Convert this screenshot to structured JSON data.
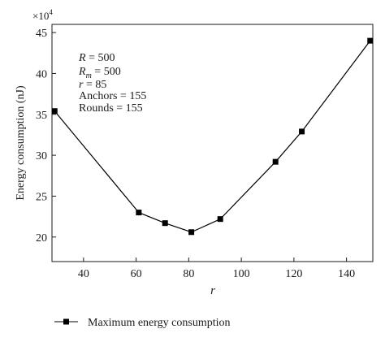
{
  "chart_data": {
    "type": "line",
    "title": "",
    "xlabel": "r",
    "ylabel": "Energy consumption (nJ)",
    "y_multiplier": "×10",
    "y_multiplier_exp": "4",
    "xlim": [
      28,
      150
    ],
    "ylim": [
      17,
      46
    ],
    "x_ticks": [
      40,
      60,
      80,
      100,
      120,
      140
    ],
    "y_ticks": [
      20,
      25,
      30,
      35,
      40,
      45
    ],
    "grid": false,
    "legend_position": "bottom-left",
    "series": [
      {
        "name": "Maximum energy consumption",
        "color": "#000000",
        "marker": "square",
        "x": [
          29,
          61,
          71,
          81,
          92,
          113,
          123,
          149
        ],
        "y": [
          35.4,
          23.0,
          21.7,
          20.6,
          22.2,
          29.2,
          32.9,
          44.0
        ]
      }
    ],
    "annotation": {
      "params": [
        {
          "name": "R",
          "sub": "",
          "value": " = 500"
        },
        {
          "name": "R",
          "sub": "m",
          "value": " = 500"
        },
        {
          "name": "r",
          "sub": "",
          "value": " = 85"
        }
      ],
      "lines": [
        "Anchors = 155",
        "Rounds = 155"
      ]
    }
  }
}
